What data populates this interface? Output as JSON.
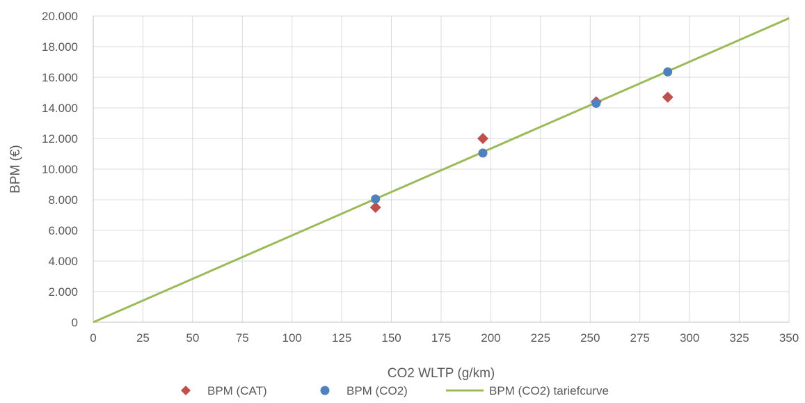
{
  "chart_data": {
    "type": "scatter",
    "title": "",
    "xlabel": "CO2 WLTP (g/km)",
    "ylabel": "BPM (€)",
    "xlim": [
      0,
      350
    ],
    "ylim": [
      0,
      20000
    ],
    "x_ticks": [
      {
        "value": 0,
        "label": "0"
      },
      {
        "value": 25,
        "label": "25"
      },
      {
        "value": 50,
        "label": "50"
      },
      {
        "value": 75,
        "label": "75"
      },
      {
        "value": 100,
        "label": "100"
      },
      {
        "value": 125,
        "label": "125"
      },
      {
        "value": 150,
        "label": "150"
      },
      {
        "value": 175,
        "label": "175"
      },
      {
        "value": 200,
        "label": "200"
      },
      {
        "value": 225,
        "label": "225"
      },
      {
        "value": 250,
        "label": "250"
      },
      {
        "value": 275,
        "label": "275"
      },
      {
        "value": 300,
        "label": "300"
      },
      {
        "value": 325,
        "label": "325"
      },
      {
        "value": 350,
        "label": "350"
      }
    ],
    "y_ticks": [
      {
        "value": 0,
        "label": "0"
      },
      {
        "value": 2000,
        "label": "2.000"
      },
      {
        "value": 4000,
        "label": "4.000"
      },
      {
        "value": 6000,
        "label": "6.000"
      },
      {
        "value": 8000,
        "label": "8.000"
      },
      {
        "value": 10000,
        "label": "10.000"
      },
      {
        "value": 12000,
        "label": "12.000"
      },
      {
        "value": 14000,
        "label": "14.000"
      },
      {
        "value": 16000,
        "label": "16.000"
      },
      {
        "value": 18000,
        "label": "18.000"
      },
      {
        "value": 20000,
        "label": "20.000"
      }
    ],
    "grid": true,
    "legend_position": "bottom",
    "series": [
      {
        "name": "BPM (CAT)",
        "kind": "scatter",
        "marker": "diamond",
        "color": "#c0504d",
        "points": [
          {
            "x": 142,
            "y": 7500
          },
          {
            "x": 196,
            "y": 12000
          },
          {
            "x": 253,
            "y": 14400
          },
          {
            "x": 289,
            "y": 14700
          }
        ]
      },
      {
        "name": "BPM (CO2)",
        "kind": "scatter",
        "marker": "circle",
        "color": "#4f81bd",
        "points": [
          {
            "x": 142,
            "y": 8050
          },
          {
            "x": 196,
            "y": 11050
          },
          {
            "x": 253,
            "y": 14300
          },
          {
            "x": 289,
            "y": 16350
          }
        ]
      },
      {
        "name": "BPM (CO2) tariefcurve",
        "kind": "line",
        "color": "#9bbb59",
        "points": [
          {
            "x": 0,
            "y": 0
          },
          {
            "x": 350,
            "y": 19850
          }
        ]
      }
    ]
  }
}
